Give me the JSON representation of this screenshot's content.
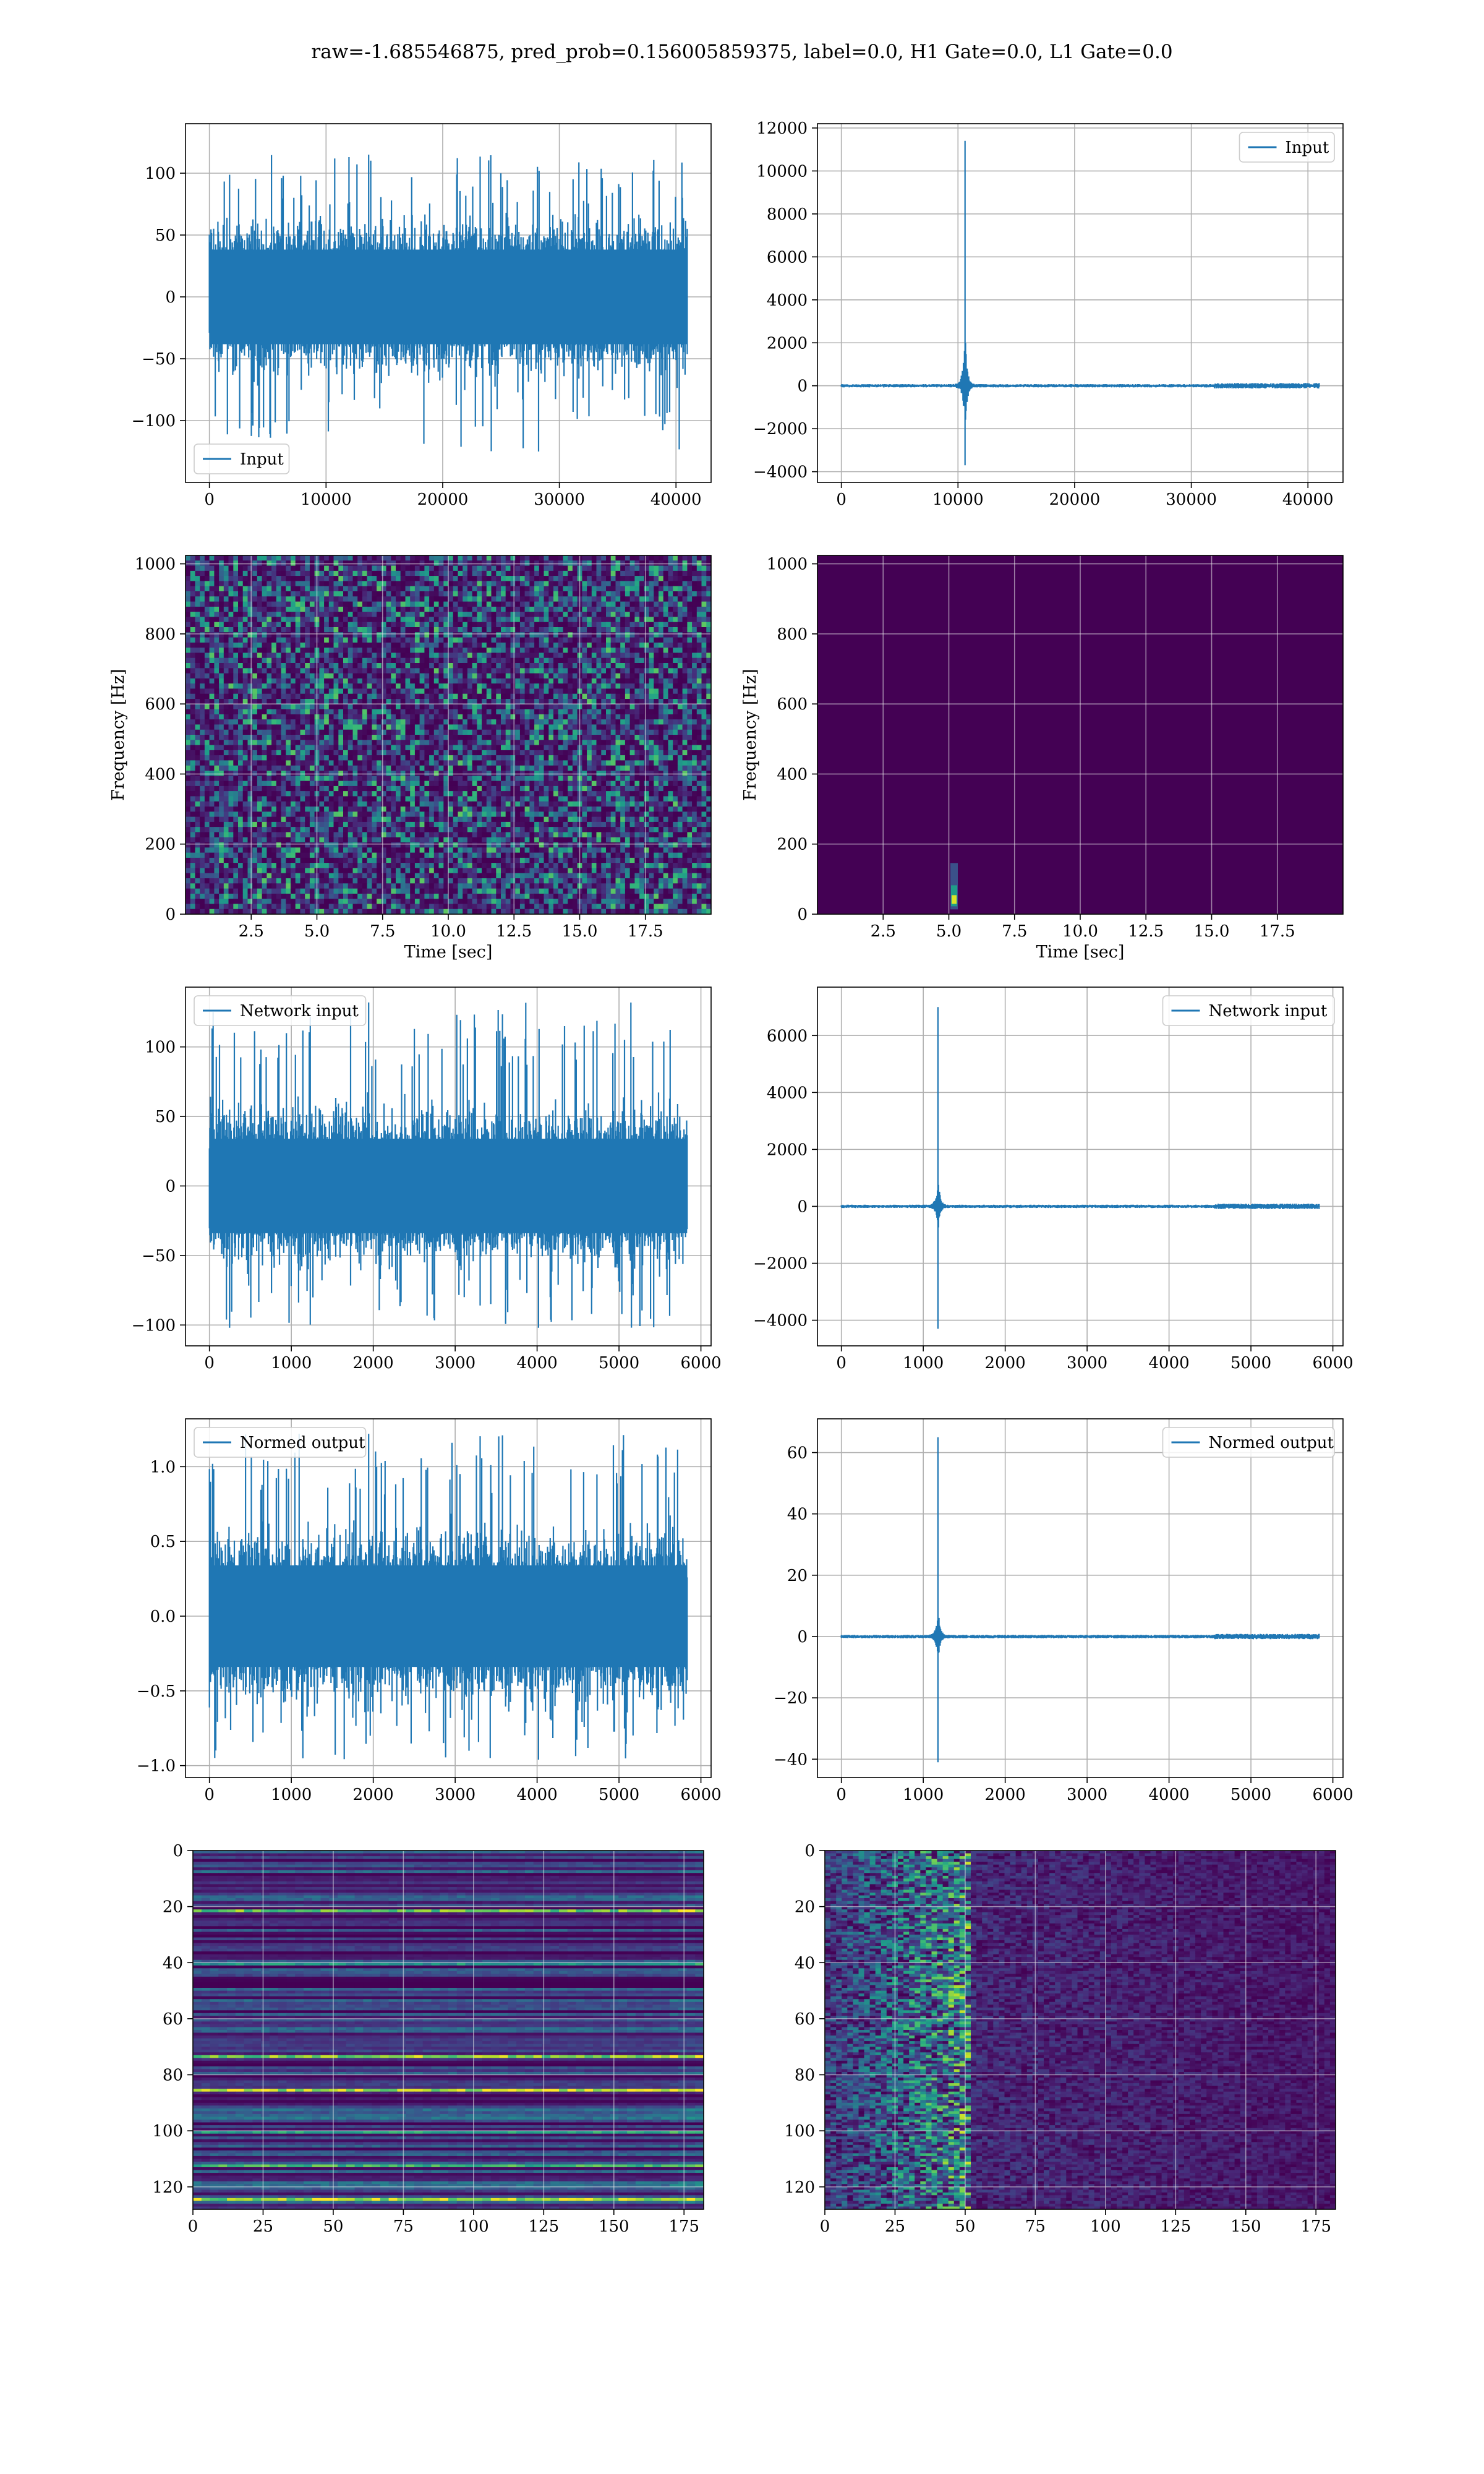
{
  "title": "raw=-1.685546875, pred_prob=0.156005859375, label=0.0, H1 Gate=0.0, L1 Gate=0.0",
  "colors": {
    "series": "#1f77b4",
    "grid": "#b0b0b0",
    "viridis_dark": "#440154",
    "viridis_mid": "#21918c",
    "viridis_bright": "#fde725"
  },
  "chart_data": [
    {
      "id": "p1",
      "type": "line",
      "panel": "row1-left",
      "title": "",
      "xlabel": "",
      "ylabel": "",
      "series": [
        {
          "name": "Input",
          "kind": "noise",
          "xmax": 40960,
          "typical_amplitude": 45,
          "peak_max": 115,
          "peak_min": -125
        }
      ],
      "legend": {
        "label": "Input",
        "position": "lower-left"
      },
      "xlim": [
        -2048,
        43008
      ],
      "ylim": [
        -150,
        140
      ],
      "xticks": [
        0,
        10000,
        20000,
        30000,
        40000
      ],
      "xtick_labels": [
        "0",
        "10000",
        "20000",
        "30000",
        "40000"
      ],
      "yticks": [
        -100,
        -50,
        0,
        50,
        100
      ],
      "ytick_labels": [
        "−100",
        "−50",
        "0",
        "50",
        "100"
      ],
      "grid": true
    },
    {
      "id": "p2",
      "type": "line",
      "panel": "row1-right",
      "title": "",
      "xlabel": "",
      "ylabel": "",
      "series": [
        {
          "name": "Input",
          "kind": "glitch",
          "xmax": 40960,
          "glitch_x": 10600,
          "peak_max": 11400,
          "peak_min": -3700,
          "secondary_peak": 2800
        }
      ],
      "legend": {
        "label": "Input",
        "position": "upper-right"
      },
      "xlim": [
        -2048,
        43008
      ],
      "ylim": [
        -4500,
        12200
      ],
      "xticks": [
        0,
        10000,
        20000,
        30000,
        40000
      ],
      "xtick_labels": [
        "0",
        "10000",
        "20000",
        "30000",
        "40000"
      ],
      "yticks": [
        -4000,
        -2000,
        0,
        2000,
        4000,
        6000,
        8000,
        10000,
        12000
      ],
      "ytick_labels": [
        "−4000",
        "−2000",
        "0",
        "2000",
        "4000",
        "6000",
        "8000",
        "10000",
        "12000"
      ],
      "grid": true
    },
    {
      "id": "p3",
      "type": "heatmap",
      "panel": "row2-left",
      "title": "",
      "xlabel": "Time [sec]",
      "ylabel": "Frequency [Hz]",
      "pattern": "speckle",
      "xlim": [
        0,
        20
      ],
      "ylim": [
        0,
        1024
      ],
      "xticks": [
        2.5,
        5,
        7.5,
        10,
        12.5,
        15,
        17.5
      ],
      "xtick_labels": [
        "2.5",
        "5.0",
        "7.5",
        "10.0",
        "12.5",
        "15.0",
        "17.5"
      ],
      "yticks": [
        0,
        200,
        400,
        600,
        800,
        1000
      ],
      "ytick_labels": [
        "0",
        "200",
        "400",
        "600",
        "800",
        "1000"
      ],
      "grid": true
    },
    {
      "id": "p4",
      "type": "heatmap",
      "panel": "row2-right",
      "title": "",
      "xlabel": "Time [sec]",
      "ylabel": "Frequency [Hz]",
      "pattern": "single-spot",
      "spot_time": 5.2,
      "spot_freq": 40,
      "xlim": [
        0,
        20
      ],
      "ylim": [
        0,
        1024
      ],
      "xticks": [
        2.5,
        5,
        7.5,
        10,
        12.5,
        15,
        17.5
      ],
      "xtick_labels": [
        "2.5",
        "5.0",
        "7.5",
        "10.0",
        "12.5",
        "15.0",
        "17.5"
      ],
      "yticks": [
        0,
        200,
        400,
        600,
        800,
        1000
      ],
      "ytick_labels": [
        "0",
        "200",
        "400",
        "600",
        "800",
        "1000"
      ],
      "grid": true
    },
    {
      "id": "p5",
      "type": "line",
      "panel": "row3-left",
      "title": "",
      "xlabel": "",
      "ylabel": "",
      "series": [
        {
          "name": "Network input",
          "kind": "noise",
          "xmax": 5832,
          "typical_amplitude": 40,
          "peak_max": 132,
          "peak_min": -102
        }
      ],
      "legend": {
        "label": "Network input",
        "position": "upper-left"
      },
      "xlim": [
        -292,
        6124
      ],
      "ylim": [
        -115,
        143
      ],
      "xticks": [
        0,
        1000,
        2000,
        3000,
        4000,
        5000,
        6000
      ],
      "xtick_labels": [
        "0",
        "1000",
        "2000",
        "3000",
        "4000",
        "5000",
        "6000"
      ],
      "yticks": [
        -100,
        -50,
        0,
        50,
        100
      ],
      "ytick_labels": [
        "−100",
        "−50",
        "0",
        "50",
        "100"
      ],
      "grid": true
    },
    {
      "id": "p6",
      "type": "line",
      "panel": "row3-right",
      "title": "",
      "xlabel": "",
      "ylabel": "",
      "series": [
        {
          "name": "Network input",
          "kind": "glitch",
          "xmax": 5832,
          "glitch_x": 1180,
          "peak_max": 7000,
          "peak_min": -4300,
          "secondary_peak": 1100
        }
      ],
      "legend": {
        "label": "Network input",
        "position": "upper-right"
      },
      "xlim": [
        -292,
        6124
      ],
      "ylim": [
        -4900,
        7700
      ],
      "xticks": [
        0,
        1000,
        2000,
        3000,
        4000,
        5000,
        6000
      ],
      "xtick_labels": [
        "0",
        "1000",
        "2000",
        "3000",
        "4000",
        "5000",
        "6000"
      ],
      "yticks": [
        -4000,
        -2000,
        0,
        2000,
        4000,
        6000
      ],
      "ytick_labels": [
        "−4000",
        "−2000",
        "0",
        "2000",
        "4000",
        "6000"
      ],
      "grid": true
    },
    {
      "id": "p7",
      "type": "line",
      "panel": "row4-left",
      "title": "",
      "xlabel": "",
      "ylabel": "",
      "series": [
        {
          "name": "Normed output",
          "kind": "noise",
          "xmax": 5832,
          "typical_amplitude": 0.4,
          "peak_max": 1.22,
          "peak_min": -0.96
        }
      ],
      "legend": {
        "label": "Normed output",
        "position": "upper-left"
      },
      "xlim": [
        -292,
        6124
      ],
      "ylim": [
        -1.08,
        1.32
      ],
      "xticks": [
        0,
        1000,
        2000,
        3000,
        4000,
        5000,
        6000
      ],
      "xtick_labels": [
        "0",
        "1000",
        "2000",
        "3000",
        "4000",
        "5000",
        "6000"
      ],
      "yticks": [
        -1,
        -0.5,
        0,
        0.5,
        1
      ],
      "ytick_labels": [
        "−1.0",
        "−0.5",
        "0.0",
        "0.5",
        "1.0"
      ],
      "grid": true
    },
    {
      "id": "p8",
      "type": "line",
      "panel": "row4-right",
      "title": "",
      "xlabel": "",
      "ylabel": "",
      "series": [
        {
          "name": "Normed output",
          "kind": "glitch",
          "xmax": 5832,
          "glitch_x": 1180,
          "peak_max": 65,
          "peak_min": -41,
          "secondary_peak": 10
        }
      ],
      "legend": {
        "label": "Normed output",
        "position": "upper-right"
      },
      "xlim": [
        -292,
        6124
      ],
      "ylim": [
        -46,
        71
      ],
      "xticks": [
        0,
        1000,
        2000,
        3000,
        4000,
        5000,
        6000
      ],
      "xtick_labels": [
        "0",
        "1000",
        "2000",
        "3000",
        "4000",
        "5000",
        "6000"
      ],
      "yticks": [
        -40,
        -20,
        0,
        20,
        40,
        60
      ],
      "ytick_labels": [
        "−40",
        "−20",
        "0",
        "20",
        "40",
        "60"
      ],
      "grid": true
    },
    {
      "id": "p9",
      "type": "heatmap",
      "panel": "row5-left",
      "title": "",
      "xlabel": "",
      "ylabel": "",
      "pattern": "horizontal-bands",
      "xlim": [
        0,
        182
      ],
      "ylim": [
        128,
        0
      ],
      "y_inverted": true,
      "xticks": [
        0,
        25,
        50,
        75,
        100,
        125,
        150,
        175
      ],
      "xtick_labels": [
        "0",
        "25",
        "50",
        "75",
        "100",
        "125",
        "150",
        "175"
      ],
      "yticks": [
        0,
        20,
        40,
        60,
        80,
        100,
        120
      ],
      "ytick_labels": [
        "0",
        "20",
        "40",
        "60",
        "80",
        "100",
        "120"
      ],
      "grid": true
    },
    {
      "id": "p10",
      "type": "heatmap",
      "panel": "row5-right",
      "title": "",
      "xlabel": "",
      "ylabel": "",
      "pattern": "left-energy",
      "energy_until": 50,
      "xlim": [
        0,
        182
      ],
      "ylim": [
        128,
        0
      ],
      "y_inverted": true,
      "xticks": [
        0,
        25,
        50,
        75,
        100,
        125,
        150,
        175
      ],
      "xtick_labels": [
        "0",
        "25",
        "50",
        "75",
        "100",
        "125",
        "150",
        "175"
      ],
      "yticks": [
        0,
        20,
        40,
        60,
        80,
        100,
        120
      ],
      "ytick_labels": [
        "0",
        "20",
        "40",
        "60",
        "80",
        "100",
        "120"
      ],
      "grid": true
    }
  ]
}
